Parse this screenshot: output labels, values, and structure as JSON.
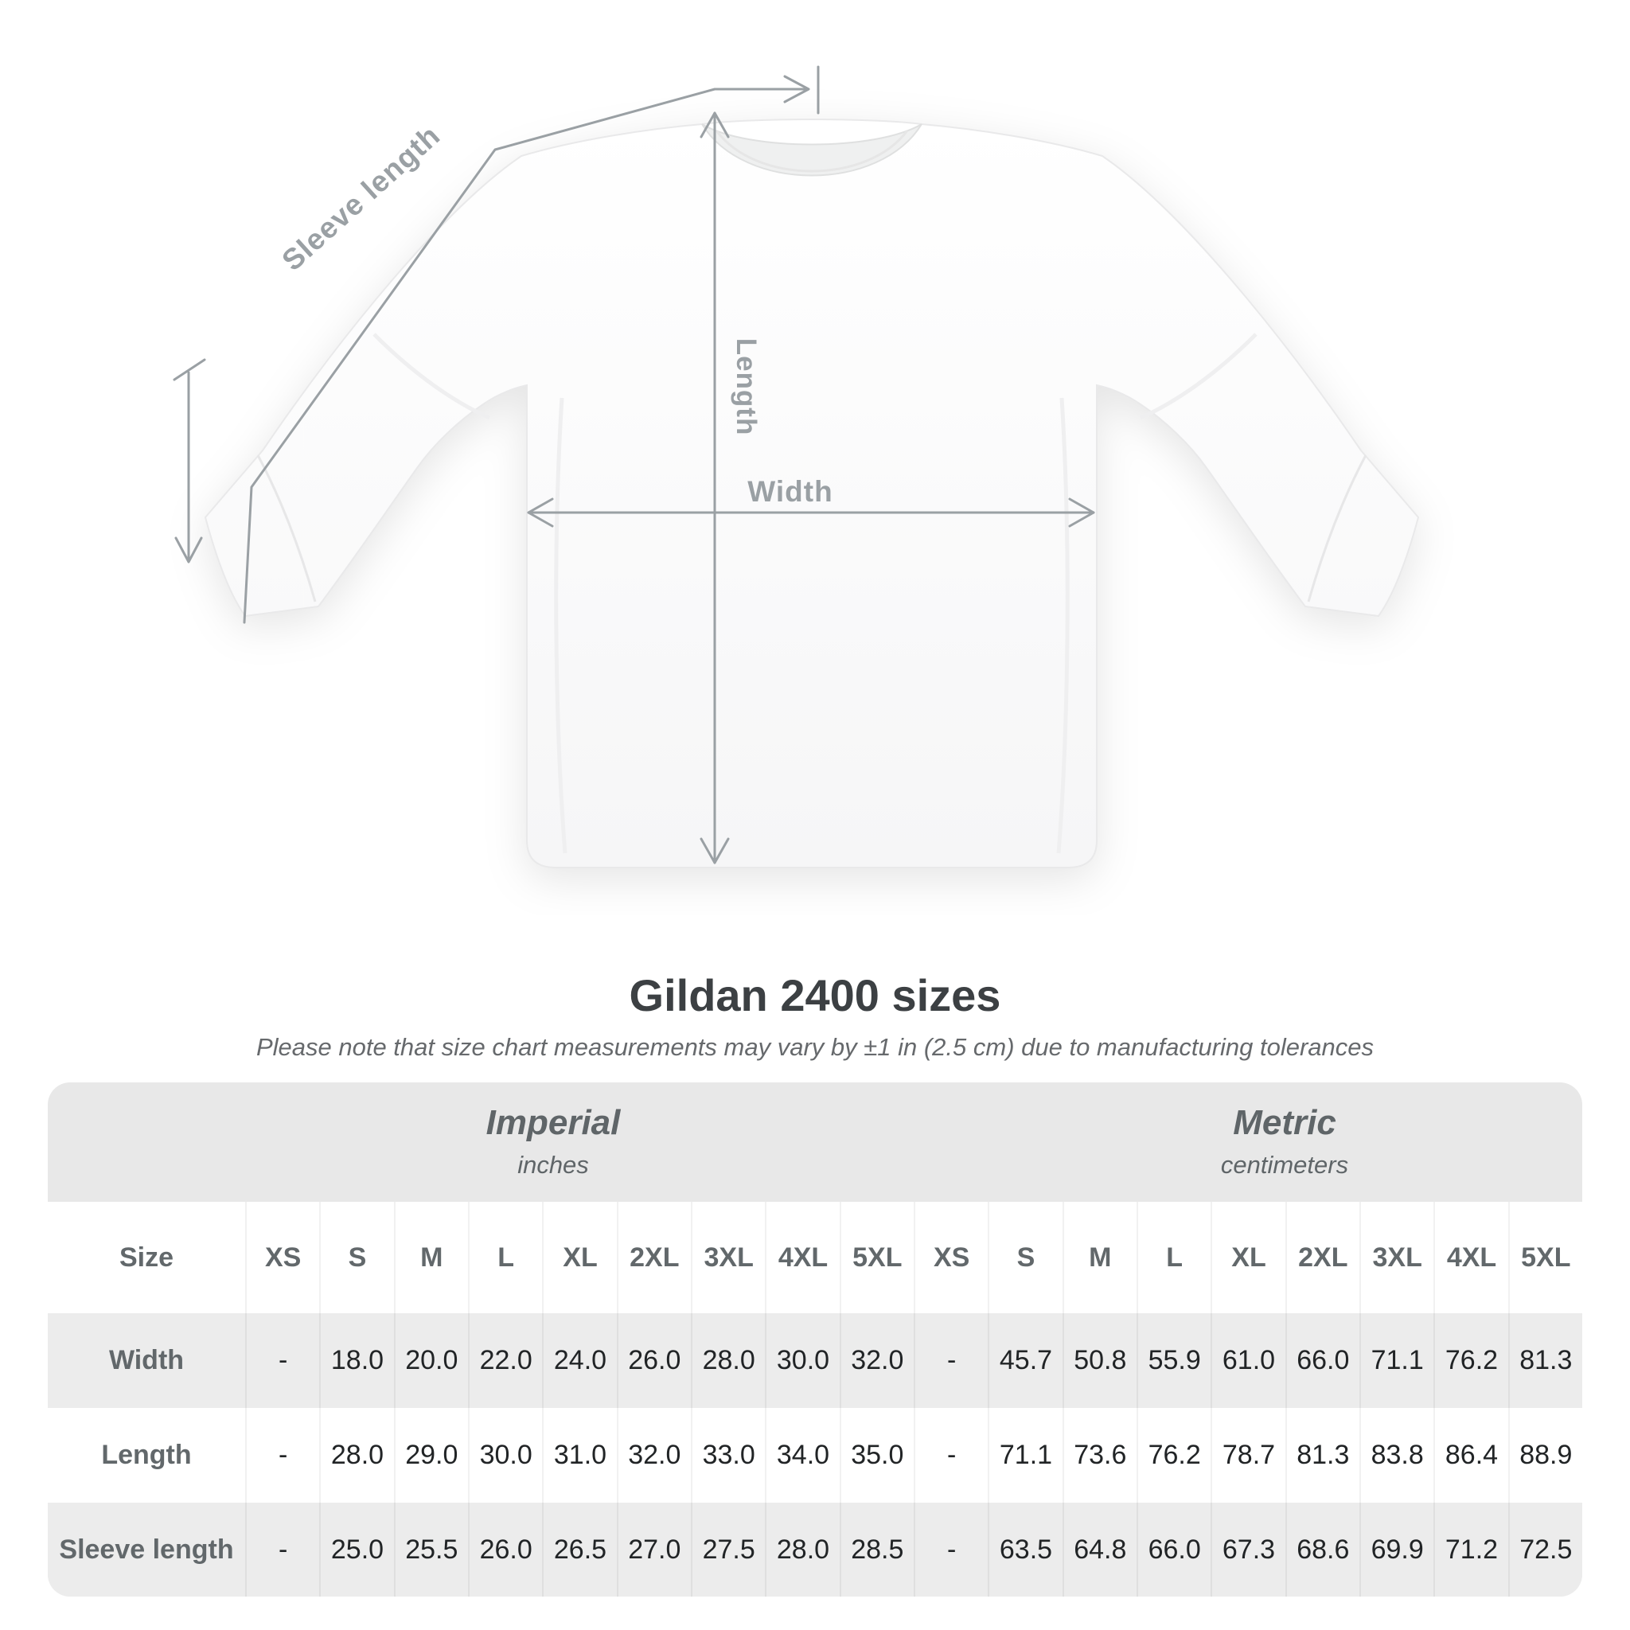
{
  "diagram": {
    "labels": {
      "sleeve": "Sleeve length",
      "length": "Length",
      "width": "Width"
    },
    "line_color": "#9aa0a4"
  },
  "title": "Gildan 2400 sizes",
  "subtitle": "Please note that size chart measurements may vary by ±1 in (2.5 cm) due to manufacturing tolerances",
  "table": {
    "size_header": "Size",
    "unit_groups": [
      {
        "name": "Imperial",
        "unit": "inches"
      },
      {
        "name": "Metric",
        "unit": "centimeters"
      }
    ],
    "sizes": [
      "XS",
      "S",
      "M",
      "L",
      "XL",
      "2XL",
      "3XL",
      "4XL",
      "5XL"
    ],
    "rows": [
      {
        "label": "Width",
        "imperial": [
          "-",
          "18.0",
          "20.0",
          "22.0",
          "24.0",
          "26.0",
          "28.0",
          "30.0",
          "32.0"
        ],
        "metric": [
          "-",
          "45.7",
          "50.8",
          "55.9",
          "61.0",
          "66.0",
          "71.1",
          "76.2",
          "81.3"
        ]
      },
      {
        "label": "Length",
        "imperial": [
          "-",
          "28.0",
          "29.0",
          "30.0",
          "31.0",
          "32.0",
          "33.0",
          "34.0",
          "35.0"
        ],
        "metric": [
          "-",
          "71.1",
          "73.6",
          "76.2",
          "78.7",
          "81.3",
          "83.8",
          "86.4",
          "88.9"
        ]
      },
      {
        "label": "Sleeve length",
        "imperial": [
          "-",
          "25.0",
          "25.5",
          "26.0",
          "26.5",
          "27.0",
          "27.5",
          "28.0",
          "28.5"
        ],
        "metric": [
          "-",
          "63.5",
          "64.8",
          "66.0",
          "67.3",
          "68.6",
          "69.9",
          "71.2",
          "72.5"
        ]
      }
    ]
  },
  "chart_data": {
    "type": "table",
    "title": "Gildan 2400 sizes",
    "subtitle": "Please note that size chart measurements may vary by ±1 in (2.5 cm) due to manufacturing tolerances",
    "column_groups": [
      {
        "name": "Imperial",
        "unit": "inches",
        "sizes": [
          "XS",
          "S",
          "M",
          "L",
          "XL",
          "2XL",
          "3XL",
          "4XL",
          "5XL"
        ]
      },
      {
        "name": "Metric",
        "unit": "centimeters",
        "sizes": [
          "XS",
          "S",
          "M",
          "L",
          "XL",
          "2XL",
          "3XL",
          "4XL",
          "5XL"
        ]
      }
    ],
    "rows": [
      {
        "label": "Width",
        "imperial": [
          null,
          18.0,
          20.0,
          22.0,
          24.0,
          26.0,
          28.0,
          30.0,
          32.0
        ],
        "metric": [
          null,
          45.7,
          50.8,
          55.9,
          61.0,
          66.0,
          71.1,
          76.2,
          81.3
        ]
      },
      {
        "label": "Length",
        "imperial": [
          null,
          28.0,
          29.0,
          30.0,
          31.0,
          32.0,
          33.0,
          34.0,
          35.0
        ],
        "metric": [
          null,
          71.1,
          73.6,
          76.2,
          78.7,
          81.3,
          83.8,
          86.4,
          88.9
        ]
      },
      {
        "label": "Sleeve length",
        "imperial": [
          null,
          25.0,
          25.5,
          26.0,
          26.5,
          27.0,
          27.5,
          28.0,
          28.5
        ],
        "metric": [
          null,
          63.5,
          64.8,
          66.0,
          67.3,
          68.6,
          69.9,
          71.2,
          72.5
        ]
      }
    ]
  }
}
